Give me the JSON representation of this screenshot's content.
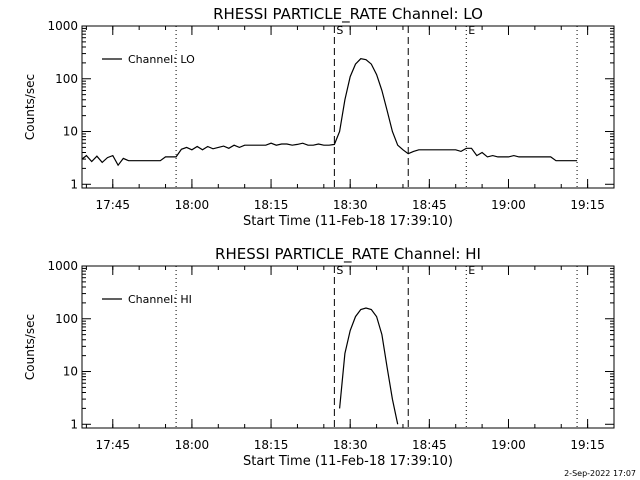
{
  "footer_timestamp": "2-Sep-2022 17:07",
  "chart_data": [
    {
      "type": "line",
      "title": "RHESSI PARTICLE_RATE Channel: LO",
      "xlabel": "Start Time (11-Feb-18 17:39:10)",
      "ylabel": "Counts/sec",
      "yscale": "log",
      "ylim": [
        0.85,
        1000
      ],
      "xlim": [
        "17:39:10",
        "19:20:00"
      ],
      "x_ticks": [
        "17:45",
        "18:00",
        "18:15",
        "18:30",
        "18:45",
        "19:00",
        "19:15"
      ],
      "y_ticks": [
        "1",
        "10",
        "100",
        "1000"
      ],
      "legend": {
        "position": "top-left",
        "label": "Channel: LO"
      },
      "markers": [
        {
          "time": "17:57",
          "style": "dotted",
          "label": ""
        },
        {
          "time": "18:27",
          "style": "dashed",
          "label": "S"
        },
        {
          "time": "18:41",
          "style": "dashed",
          "label": ""
        },
        {
          "time": "18:52",
          "style": "dotted",
          "label": "E"
        },
        {
          "time": "19:13",
          "style": "dotted",
          "label": ""
        }
      ],
      "series": [
        {
          "x": [
            "17:39:10",
            "17:40:00",
            "17:41:00",
            "17:42:00",
            "17:43:00",
            "17:44:00",
            "17:45:00",
            "17:46:00",
            "17:47:00",
            "17:48:00",
            "17:49:00",
            "17:50:00",
            "17:51:00",
            "17:52:00",
            "17:53:00",
            "17:54:00",
            "17:55:00",
            "17:56:00",
            "17:57:00",
            "17:58:00",
            "17:59:00",
            "18:00:00",
            "18:01:00",
            "18:02:00",
            "18:03:00",
            "18:04:00",
            "18:05:00",
            "18:06:00",
            "18:07:00",
            "18:08:00",
            "18:09:00",
            "18:10:00",
            "18:11:00",
            "18:12:00",
            "18:13:00",
            "18:14:00",
            "18:15:00",
            "18:16:00",
            "18:17:00",
            "18:18:00",
            "18:19:00",
            "18:20:00",
            "18:21:00",
            "18:22:00",
            "18:23:00",
            "18:24:00",
            "18:25:00",
            "18:26:00",
            "18:27:00",
            "18:28:00",
            "18:29:00",
            "18:30:00",
            "18:31:00",
            "18:32:00",
            "18:33:00",
            "18:34:00",
            "18:35:00",
            "18:36:00",
            "18:37:00",
            "18:38:00",
            "18:39:00",
            "18:40:00",
            "18:41:00",
            "18:42:00",
            "18:43:00",
            "18:44:00",
            "18:45:00",
            "18:46:00",
            "18:47:00",
            "18:48:00",
            "18:49:00",
            "18:50:00",
            "18:51:00",
            "18:52:00",
            "18:53:00",
            "18:54:00",
            "18:55:00",
            "18:56:00",
            "18:57:00",
            "18:58:00",
            "18:59:00",
            "19:00:00",
            "19:01:00",
            "19:02:00",
            "19:03:00",
            "19:04:00",
            "19:05:00",
            "19:06:00",
            "19:07:00",
            "19:08:00",
            "19:09:00",
            "19:10:00",
            "19:11:00",
            "19:12:00",
            "19:13:00"
          ],
          "y": [
            3,
            3.5,
            2.7,
            3.4,
            2.6,
            3.2,
            3.5,
            2.3,
            3.1,
            2.8,
            2.8,
            2.8,
            2.8,
            2.8,
            2.8,
            2.8,
            3.3,
            3.3,
            3.3,
            4.6,
            5,
            4.5,
            5.2,
            4.5,
            5.2,
            4.7,
            5,
            5.3,
            4.8,
            5.5,
            5,
            5.5,
            5.5,
            5.5,
            5.5,
            5.5,
            6,
            5.5,
            5.8,
            5.8,
            5.5,
            5.7,
            6,
            5.5,
            5.5,
            5.8,
            5.5,
            5.5,
            5.7,
            10,
            40,
            110,
            190,
            240,
            230,
            190,
            120,
            60,
            25,
            10,
            5.5,
            4.5,
            3.8,
            4.2,
            4.5,
            4.5,
            4.5,
            4.5,
            4.5,
            4.5,
            4.5,
            4.5,
            4.2,
            4.8,
            4.8,
            3.5,
            4,
            3.3,
            3.5,
            3.3,
            3.3,
            3.3,
            3.5,
            3.3,
            3.3,
            3.3,
            3.3,
            3.3,
            3.3,
            3.3,
            2.8,
            2.8,
            2.8,
            2.8,
            2.8
          ]
        }
      ]
    },
    {
      "type": "line",
      "title": "RHESSI PARTICLE_RATE Channel: HI",
      "xlabel": "Start Time (11-Feb-18 17:39:10)",
      "ylabel": "Counts/sec",
      "yscale": "log",
      "ylim": [
        0.85,
        1000
      ],
      "xlim": [
        "17:39:10",
        "19:20:00"
      ],
      "x_ticks": [
        "17:45",
        "18:00",
        "18:15",
        "18:30",
        "18:45",
        "19:00",
        "19:15"
      ],
      "y_ticks": [
        "1",
        "10",
        "100",
        "1000"
      ],
      "legend": {
        "position": "top-left",
        "label": "Channel: HI"
      },
      "markers": [
        {
          "time": "17:57",
          "style": "dotted",
          "label": ""
        },
        {
          "time": "18:27",
          "style": "dashed",
          "label": "S"
        },
        {
          "time": "18:41",
          "style": "dashed",
          "label": ""
        },
        {
          "time": "18:52",
          "style": "dotted",
          "label": "E"
        },
        {
          "time": "19:13",
          "style": "dotted",
          "label": ""
        }
      ],
      "series": [
        {
          "x": [
            "18:28:00",
            "18:29:00",
            "18:30:00",
            "18:31:00",
            "18:32:00",
            "18:33:00",
            "18:34:00",
            "18:35:00",
            "18:36:00",
            "18:37:00",
            "18:38:00",
            "18:39:00"
          ],
          "y": [
            2,
            22,
            60,
            110,
            150,
            160,
            150,
            110,
            50,
            12,
            3,
            1
          ]
        }
      ]
    }
  ]
}
